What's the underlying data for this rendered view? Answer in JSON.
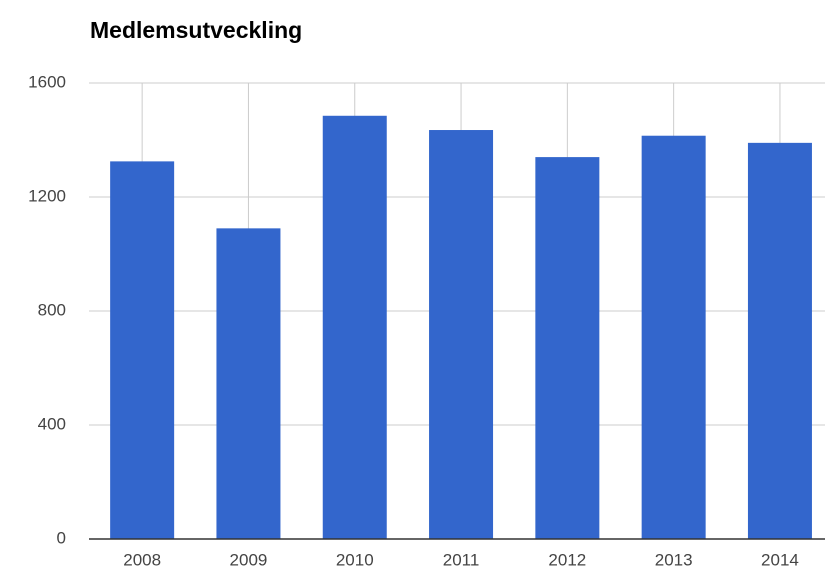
{
  "chart_data": {
    "type": "bar",
    "title": "Medlemsutveckling",
    "categories": [
      "2008",
      "2009",
      "2010",
      "2011",
      "2012",
      "2013",
      "2014"
    ],
    "values": [
      1325,
      1090,
      1485,
      1435,
      1340,
      1415,
      1390
    ],
    "color": "#3366cc",
    "ylim": [
      0,
      1600
    ],
    "yticks": [
      0,
      400,
      800,
      1200,
      1600
    ],
    "grid": true
  }
}
